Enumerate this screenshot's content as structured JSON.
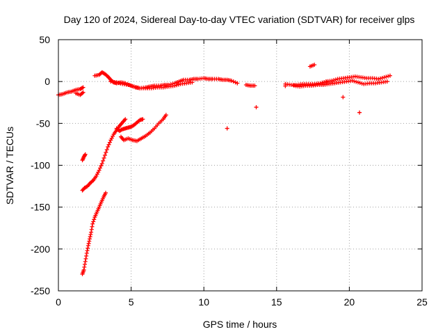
{
  "chart_data": {
    "type": "scatter",
    "title": "Day 120 of 2024, Sidereal Day-to-day VTEC variation (SDTVAR) for receiver glps",
    "xlabel": "GPS time / hours",
    "ylabel": "SDTVAR / TECUs",
    "xlim": [
      0,
      25
    ],
    "ylim": [
      -250,
      50
    ],
    "xticks": [
      0,
      5,
      10,
      15,
      20,
      25
    ],
    "yticks": [
      -250,
      -200,
      -150,
      -100,
      -50,
      0,
      50
    ],
    "grid": true,
    "marker": "+",
    "color": "#ff0000",
    "segments": [
      {
        "name": "baseline-early",
        "x": [
          0.0,
          0.3,
          0.6,
          0.9,
          1.2,
          1.5,
          1.7
        ],
        "y": [
          -16,
          -15,
          -13,
          -12,
          -10,
          -9,
          -7
        ]
      },
      {
        "name": "baseline-early-low",
        "x": [
          1.2,
          1.5,
          1.7
        ],
        "y": [
          -14,
          -16,
          -13
        ]
      },
      {
        "name": "baseline-main",
        "x": [
          2.5,
          2.8,
          3.0,
          3.2,
          3.4,
          3.6,
          3.8,
          4.0,
          4.3,
          4.6,
          5.0,
          5.3,
          5.6,
          6.0,
          6.3,
          6.6,
          7.0,
          7.3,
          7.6,
          8.0,
          8.3,
          8.6,
          9.0,
          9.3,
          9.6,
          10.0,
          10.3,
          10.6,
          11.0,
          11.3,
          11.6,
          11.9,
          12.3
        ],
        "y": [
          7,
          8,
          11,
          9,
          6,
          2,
          -1,
          -2,
          -1,
          -2,
          -5,
          -7,
          -8,
          -7,
          -6,
          -5,
          -5,
          -4,
          -4,
          -2,
          0,
          2,
          2,
          3,
          3,
          4,
          3,
          3,
          3,
          2,
          2,
          1,
          -2
        ]
      },
      {
        "name": "baseline-main-low",
        "x": [
          3.6,
          4.0,
          4.4,
          4.8,
          5.2,
          5.6,
          6.0,
          6.4,
          6.8,
          7.2,
          7.6,
          8.0,
          8.4,
          8.8,
          9.2
        ],
        "y": [
          0,
          -1,
          -3,
          -4,
          -6,
          -8,
          -8,
          -8,
          -7,
          -7,
          -6,
          -5,
          -3,
          -2,
          -1
        ]
      },
      {
        "name": "baseline-mid",
        "x": [
          12.9,
          13.2,
          13.5
        ],
        "y": [
          -4,
          -5,
          -5
        ]
      },
      {
        "name": "baseline-late",
        "x": [
          15.6,
          16.0,
          16.4,
          16.8,
          17.2,
          17.6,
          18.0,
          18.4,
          18.8,
          19.2,
          19.6,
          20.0,
          20.4,
          20.8,
          21.2,
          21.6,
          22.0,
          22.4,
          22.8
        ],
        "y": [
          -3,
          -4,
          -4,
          -3,
          -3,
          -3,
          -2,
          0,
          1,
          3,
          4,
          5,
          6,
          5,
          4,
          4,
          3,
          5,
          7
        ]
      },
      {
        "name": "baseline-late-low",
        "x": [
          16.2,
          16.6,
          17.0,
          17.4,
          17.8,
          18.2,
          18.6,
          19.0,
          19.4,
          19.8,
          20.2,
          20.6,
          21.0,
          21.4,
          21.8,
          22.2,
          22.6
        ],
        "y": [
          -5,
          -6,
          -5,
          -5,
          -4,
          -4,
          -3,
          -2,
          -1,
          0,
          1,
          -1,
          -3,
          -2,
          -2,
          -1,
          0
        ]
      },
      {
        "name": "arc-a",
        "x": [
          1.65,
          1.8,
          2.0,
          2.2,
          2.4,
          2.6,
          2.8,
          3.0,
          3.2,
          3.4,
          3.6,
          3.8,
          4.0,
          4.2,
          4.4,
          4.6
        ],
        "y": [
          -130,
          -127,
          -125,
          -121,
          -118,
          -113,
          -106,
          -98,
          -88,
          -78,
          -70,
          -63,
          -58,
          -53,
          -49,
          -45
        ]
      },
      {
        "name": "arc-b",
        "x": [
          4.0,
          4.2,
          4.4,
          4.6,
          4.8,
          5.0,
          5.2,
          5.4,
          5.6,
          5.8
        ],
        "y": [
          -56,
          -59,
          -57,
          -56,
          -55,
          -54,
          -52,
          -49,
          -46,
          -45
        ]
      },
      {
        "name": "arc-c",
        "x": [
          4.3,
          4.5,
          4.8,
          5.1,
          5.4,
          5.7,
          6.0,
          6.3,
          6.6,
          6.9,
          7.2,
          7.4
        ],
        "y": [
          -66,
          -70,
          -68,
          -70,
          -71,
          -68,
          -65,
          -61,
          -56,
          -50,
          -45,
          -40
        ]
      },
      {
        "name": "arc-d",
        "x": [
          1.65,
          1.75,
          1.85,
          1.95,
          2.05,
          2.15,
          2.25,
          2.35,
          2.5,
          2.65,
          2.8,
          2.95,
          3.1,
          3.25
        ],
        "y": [
          -230,
          -225,
          -215,
          -205,
          -196,
          -188,
          -180,
          -170,
          -162,
          -156,
          -150,
          -144,
          -138,
          -133
        ]
      },
      {
        "name": "short-arc",
        "x": [
          1.65,
          1.75,
          1.85
        ],
        "y": [
          -94,
          -90,
          -87
        ]
      },
      {
        "name": "outliers",
        "x": [
          11.6,
          17.6,
          17.3,
          20.7
        ],
        "y": [
          -56,
          20,
          18,
          -37
        ]
      }
    ]
  }
}
